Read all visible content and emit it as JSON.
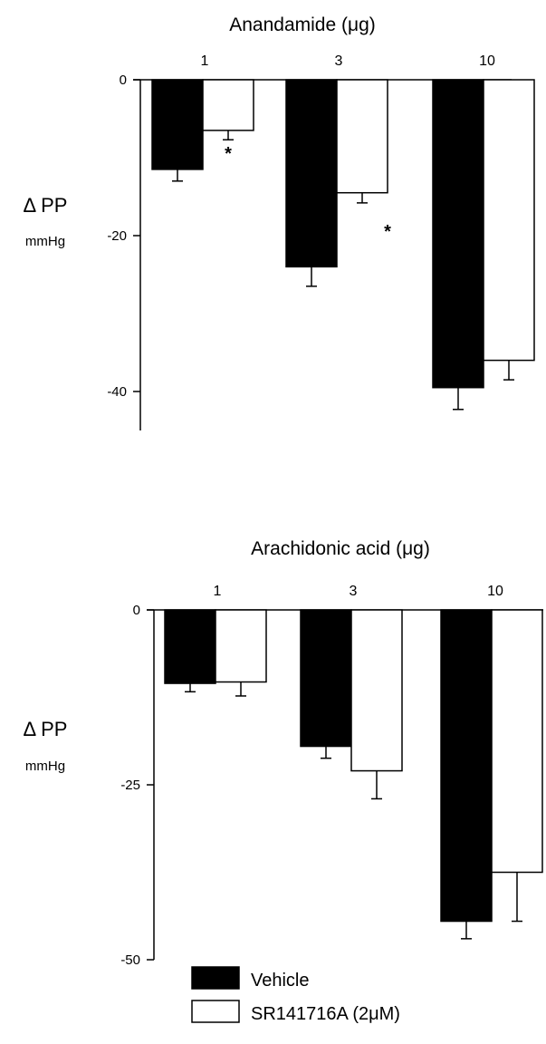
{
  "chart_data": [
    {
      "type": "bar",
      "title": "Anandamide (μg)",
      "categories": [
        "1",
        "3",
        "10"
      ],
      "ylabel": "Δ PP",
      "yunit": "mmHg",
      "ylim": [
        -45,
        0
      ],
      "yticks": [
        0,
        -20,
        -40
      ],
      "ytick_labels": [
        "0",
        "-20",
        "-40"
      ],
      "series": [
        {
          "name": "Vehicle",
          "fill": "#000000",
          "values": [
            -11.5,
            -24,
            -39.5
          ],
          "errors": [
            1.5,
            2.5,
            2.8
          ]
        },
        {
          "name": "SR141716A (2μM)",
          "fill": "#ffffff",
          "values": [
            -6.5,
            -14.5,
            -36
          ],
          "errors": [
            1.2,
            1.3,
            2.5
          ]
        }
      ],
      "annotations": [
        {
          "text": "*",
          "category": "1",
          "series": 1
        },
        {
          "text": "*",
          "category": "3",
          "series": 1
        }
      ]
    },
    {
      "type": "bar",
      "title": "Arachidonic acid (μg)",
      "categories": [
        "1",
        "3",
        "10"
      ],
      "ylabel": "Δ PP",
      "yunit": "mmHg",
      "ylim": [
        -50,
        0
      ],
      "yticks": [
        0,
        -25,
        -50
      ],
      "ytick_labels": [
        "0",
        "-25",
        "-50"
      ],
      "series": [
        {
          "name": "Vehicle",
          "fill": "#000000",
          "values": [
            -10.5,
            -19.5,
            -44.5
          ],
          "errors": [
            1.2,
            1.7,
            2.5
          ]
        },
        {
          "name": "SR141716A (2μM)",
          "fill": "#ffffff",
          "values": [
            -10.3,
            -23,
            -37.5
          ],
          "errors": [
            2.0,
            4.0,
            7.0
          ]
        }
      ],
      "annotations": []
    }
  ],
  "legend": {
    "items": [
      {
        "label": "Vehicle",
        "fill": "#000000"
      },
      {
        "label": "SR141716A (2μM)",
        "fill": "#ffffff"
      }
    ]
  }
}
